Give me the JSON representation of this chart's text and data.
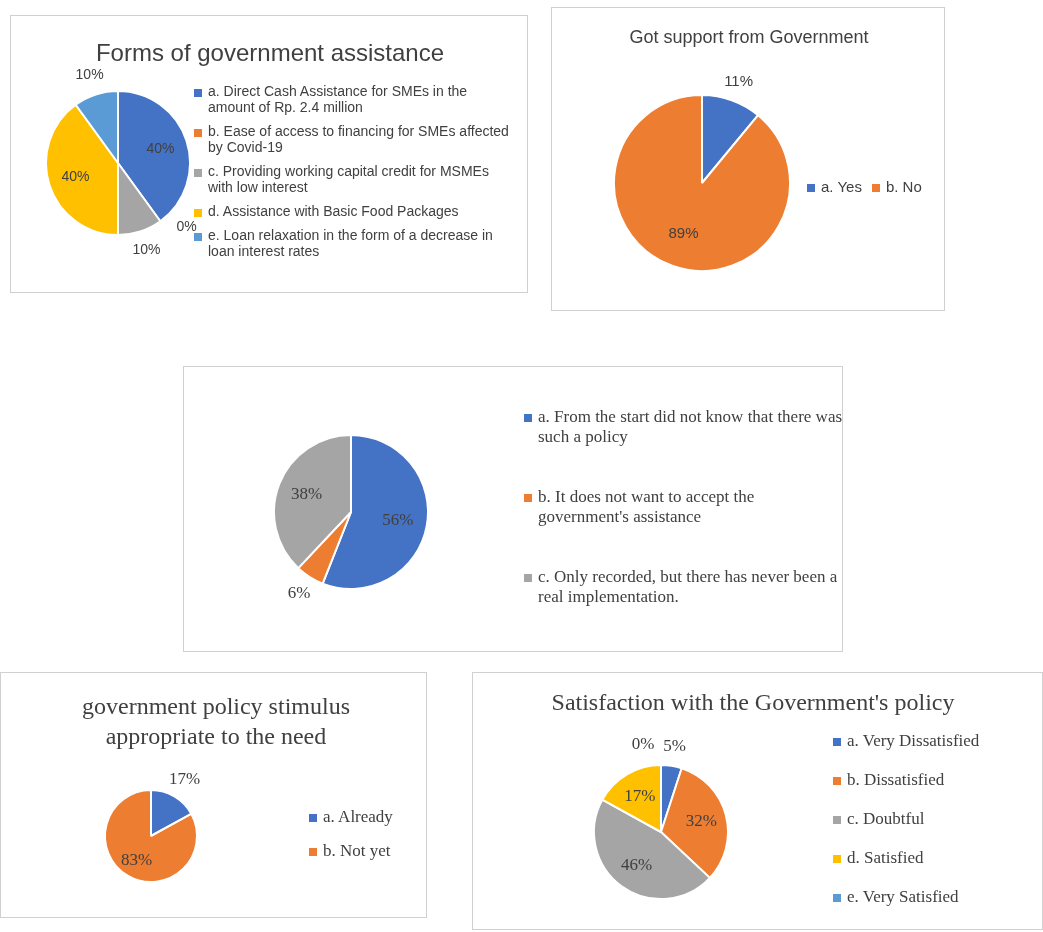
{
  "chart_data": [
    {
      "type": "pie",
      "title": "Forms of government assistance",
      "legend": "right",
      "categories": [
        "a. Direct Cash Assistance for SMEs in the amount of Rp. 2.4 million",
        "b. Ease of access to financing for SMEs affected by Covid-19",
        "c. Providing working capital credit for MSMEs with low interest",
        "d. Assistance with Basic Food Packages",
        "e. Loan relaxation in the form of a decrease in loan interest rates"
      ],
      "values": [
        40,
        0,
        10,
        40,
        10
      ],
      "colors": [
        "#4472c4",
        "#ed7d31",
        "#a5a5a5",
        "#ffc000",
        "#5b9bd5"
      ],
      "value_labels": [
        "40%",
        "0%",
        "10%",
        "40%",
        "10%"
      ]
    },
    {
      "type": "pie",
      "title": "Got support from Government",
      "legend": "right",
      "categories": [
        "a. Yes",
        "b. No"
      ],
      "values": [
        11,
        89
      ],
      "colors": [
        "#4472c4",
        "#ed7d31"
      ],
      "value_labels": [
        "11%",
        "89%"
      ]
    },
    {
      "type": "pie",
      "legend": "right",
      "categories": [
        "a. From the start did not know that there was such a policy",
        "b. It does not want to accept the government's assistance",
        "c. Only recorded, but there has never been a real implementation."
      ],
      "values": [
        56,
        6,
        38
      ],
      "colors": [
        "#4472c4",
        "#ed7d31",
        "#a5a5a5"
      ],
      "value_labels": [
        "56%",
        "6%",
        "38%"
      ]
    },
    {
      "type": "pie",
      "title": "government policy stimulus appropriate to the need",
      "legend": "right",
      "categories": [
        "a. Already",
        "b. Not yet"
      ],
      "values": [
        17,
        83
      ],
      "colors": [
        "#4472c4",
        "#ed7d31"
      ],
      "value_labels": [
        "17%",
        "83%"
      ]
    },
    {
      "type": "pie",
      "title": "Satisfaction with the Government's policy",
      "legend": "right",
      "categories": [
        "a. Very Dissatisfied",
        "b. Dissatisfied",
        "c. Doubtful",
        "d. Satisfied",
        "e. Very Satisfied"
      ],
      "values": [
        5,
        32,
        46,
        17,
        0
      ],
      "colors": [
        "#4472c4",
        "#ed7d31",
        "#a5a5a5",
        "#ffc000",
        "#5b9bd5"
      ],
      "value_labels": [
        "5%",
        "32%",
        "46%",
        "17%",
        "0%"
      ]
    }
  ]
}
